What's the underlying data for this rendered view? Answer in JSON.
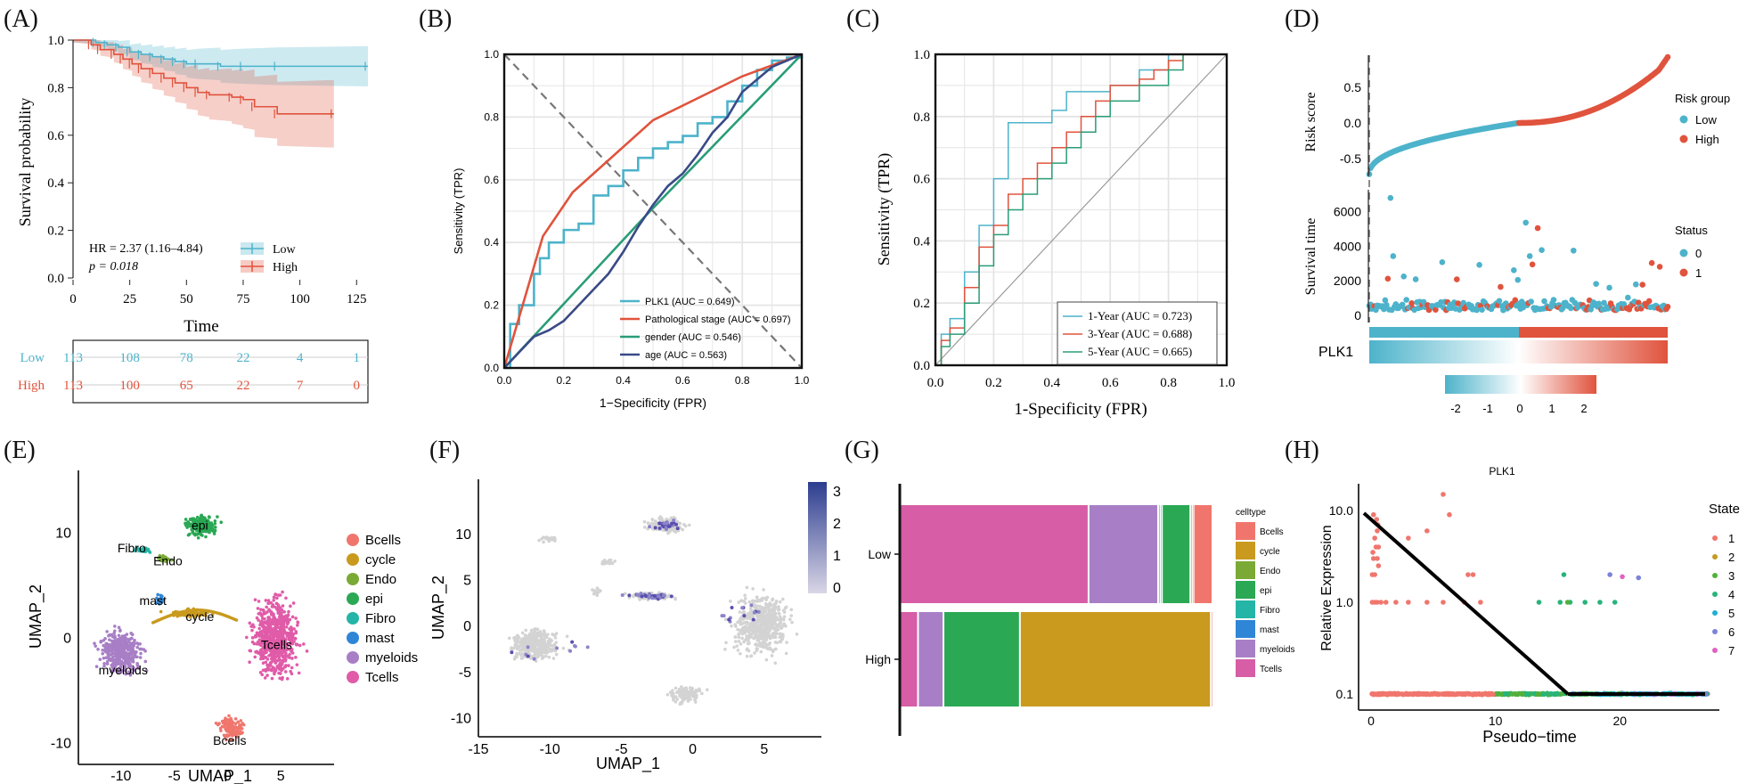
{
  "colors": {
    "low": "#4db3cb",
    "high": "#e0533d",
    "green": "#2a9d78",
    "navy": "#3a4a86",
    "grey": "#cccccc"
  },
  "panel_letters": [
    "(A)",
    "(B)",
    "(C)",
    "(D)",
    "(E)",
    "(F)",
    "(G)",
    "(H)"
  ],
  "chart_data": [
    {
      "id": "A",
      "type": "line",
      "title": "",
      "xlabel": "Time",
      "ylabel": "Survival probability",
      "xlim": [
        0,
        130
      ],
      "ylim": [
        0,
        1
      ],
      "xticks": [
        "0",
        "25",
        "50",
        "75",
        "100",
        "125"
      ],
      "yticks": [
        "0.0",
        "0.2",
        "0.4",
        "0.6",
        "0.8",
        "1.0"
      ],
      "series": [
        {
          "name": "Low",
          "x": [
            0,
            10,
            15,
            20,
            25,
            30,
            35,
            40,
            45,
            50,
            55,
            65,
            75,
            90,
            130
          ],
          "y": [
            1.0,
            0.99,
            0.98,
            0.97,
            0.95,
            0.94,
            0.93,
            0.92,
            0.91,
            0.9,
            0.9,
            0.89,
            0.89,
            0.89,
            0.89
          ]
        },
        {
          "name": "High",
          "x": [
            0,
            8,
            12,
            18,
            22,
            26,
            30,
            35,
            40,
            45,
            50,
            55,
            60,
            70,
            75,
            80,
            90,
            115
          ],
          "y": [
            1.0,
            0.98,
            0.96,
            0.94,
            0.92,
            0.9,
            0.88,
            0.86,
            0.84,
            0.82,
            0.8,
            0.78,
            0.77,
            0.76,
            0.75,
            0.72,
            0.69,
            0.69
          ]
        }
      ],
      "annotation_hr": "HR = 2.37 (1.16–4.84)",
      "annotation_p": "p = 0.018",
      "legend": [
        "Low",
        "High"
      ],
      "risk_table": {
        "rows": [
          {
            "name": "Low",
            "values": [
              "113",
              "108",
              "78",
              "22",
              "4",
              "1"
            ]
          },
          {
            "name": "High",
            "values": [
              "113",
              "100",
              "65",
              "22",
              "7",
              "0"
            ]
          }
        ]
      }
    },
    {
      "id": "B",
      "type": "line",
      "xlabel": "1−Specificity (FPR)",
      "ylabel": "Sensitivity (TPR)",
      "xlim": [
        0,
        1
      ],
      "ylim": [
        0,
        1
      ],
      "xticks": [
        "0.0",
        "0.2",
        "0.4",
        "0.6",
        "0.8",
        "1.0"
      ],
      "yticks": [
        "0.0",
        "0.2",
        "0.4",
        "0.6",
        "0.8",
        "1.0"
      ],
      "series": [
        {
          "name": "PLK1 (AUC = 0.649)",
          "x": [
            0,
            0.02,
            0.05,
            0.1,
            0.12,
            0.15,
            0.2,
            0.25,
            0.3,
            0.35,
            0.4,
            0.45,
            0.5,
            0.55,
            0.6,
            0.65,
            0.7,
            0.75,
            0.8,
            0.85,
            0.9,
            0.95,
            1
          ],
          "y": [
            0,
            0.14,
            0.2,
            0.3,
            0.35,
            0.4,
            0.44,
            0.46,
            0.55,
            0.58,
            0.63,
            0.67,
            0.7,
            0.72,
            0.74,
            0.78,
            0.8,
            0.85,
            0.9,
            0.95,
            0.98,
            0.99,
            1
          ]
        },
        {
          "name": "Pathological stage (AUC = 0.697)",
          "x": [
            0,
            0.13,
            0.23,
            0.5,
            0.8,
            1
          ],
          "y": [
            0,
            0.42,
            0.56,
            0.79,
            0.93,
            1
          ]
        },
        {
          "name": "gender (AUC = 0.546)",
          "x": [
            0,
            0.47,
            1
          ],
          "y": [
            0,
            0.48,
            1
          ]
        },
        {
          "name": "age (AUC = 0.563)",
          "x": [
            0,
            0.05,
            0.1,
            0.15,
            0.2,
            0.25,
            0.3,
            0.35,
            0.4,
            0.45,
            0.5,
            0.55,
            0.6,
            0.65,
            0.7,
            0.75,
            0.8,
            0.85,
            0.9,
            0.95,
            1
          ],
          "y": [
            0,
            0.05,
            0.1,
            0.12,
            0.15,
            0.2,
            0.25,
            0.3,
            0.37,
            0.45,
            0.52,
            0.58,
            0.62,
            0.68,
            0.75,
            0.8,
            0.88,
            0.92,
            0.96,
            0.98,
            1
          ]
        }
      ],
      "legend": [
        "PLK1 (AUC = 0.649)",
        "Pathological stage (AUC = 0.697)",
        "gender (AUC = 0.546)",
        "age (AUC = 0.563)"
      ]
    },
    {
      "id": "C",
      "type": "line",
      "xlabel": "1-Specificity (FPR)",
      "ylabel": "Sensitivity (TPR)",
      "xlim": [
        0,
        1
      ],
      "ylim": [
        0,
        1
      ],
      "xticks": [
        "0.0",
        "0.2",
        "0.4",
        "0.6",
        "0.8",
        "1.0"
      ],
      "yticks": [
        "0.0",
        "0.2",
        "0.4",
        "0.6",
        "0.8",
        "1.0"
      ],
      "series": [
        {
          "name": "1-Year (AUC = 0.723)",
          "x": [
            0,
            0.02,
            0.05,
            0.1,
            0.15,
            0.2,
            0.25,
            0.3,
            0.35,
            0.4,
            0.45,
            0.5,
            0.6,
            0.7,
            0.8,
            0.9,
            1
          ],
          "y": [
            0,
            0.1,
            0.15,
            0.3,
            0.45,
            0.6,
            0.78,
            0.78,
            0.78,
            0.82,
            0.88,
            0.88,
            0.9,
            0.95,
            1,
            1,
            1
          ]
        },
        {
          "name": "3-Year (AUC = 0.688)",
          "x": [
            0,
            0.02,
            0.05,
            0.1,
            0.15,
            0.2,
            0.25,
            0.3,
            0.35,
            0.4,
            0.45,
            0.5,
            0.55,
            0.6,
            0.7,
            0.75,
            0.8,
            0.85,
            1
          ],
          "y": [
            0,
            0.08,
            0.12,
            0.25,
            0.38,
            0.45,
            0.55,
            0.6,
            0.65,
            0.7,
            0.75,
            0.8,
            0.85,
            0.9,
            0.92,
            0.95,
            0.98,
            1,
            1
          ]
        },
        {
          "name": "5-Year (AUC = 0.665)",
          "x": [
            0,
            0.02,
            0.05,
            0.1,
            0.15,
            0.2,
            0.25,
            0.3,
            0.35,
            0.4,
            0.45,
            0.5,
            0.55,
            0.6,
            0.7,
            0.8,
            0.85,
            1
          ],
          "y": [
            0,
            0.06,
            0.1,
            0.2,
            0.32,
            0.42,
            0.5,
            0.55,
            0.6,
            0.65,
            0.7,
            0.75,
            0.8,
            0.85,
            0.9,
            0.95,
            1,
            1
          ]
        }
      ],
      "legend": [
        "1-Year (AUC = 0.723)",
        "3-Year (AUC = 0.688)",
        "5-Year (AUC = 0.665)"
      ]
    },
    {
      "id": "D",
      "type": "scatter",
      "top": {
        "ylabel": "Risk score",
        "yticks": [
          "0.5",
          "0.0",
          "-0.5"
        ],
        "ylim": [
          -0.75,
          0.95
        ],
        "legend_title": "Risk group",
        "legend": [
          "Low",
          "High"
        ]
      },
      "middle": {
        "ylabel": "Survival time",
        "yticks": [
          "6000",
          "4000",
          "2000",
          "0"
        ],
        "ylim": [
          0,
          7200
        ],
        "legend_title": "Status",
        "legend": [
          "0",
          "1"
        ]
      },
      "heatmap_label": "PLK1",
      "colorbar_ticks": [
        "-2",
        "-1",
        "0",
        "1",
        "2"
      ]
    },
    {
      "id": "E",
      "type": "scatter",
      "xlabel": "UMAP_1",
      "ylabel": "UMAP_2",
      "xlim": [
        -14,
        10
      ],
      "ylim": [
        -12,
        16
      ],
      "xticks": [
        "-10",
        "-5",
        "0",
        "5"
      ],
      "yticks": [
        "10",
        "0",
        "-10"
      ],
      "legend": [
        "Bcells",
        "cycle",
        "Endo",
        "epi",
        "Fibro",
        "mast",
        "myeloids",
        "Tcells"
      ],
      "legend_colors": [
        "#f0766d",
        "#c99a1e",
        "#7aaa35",
        "#2aa854",
        "#25b5a6",
        "#2f86d6",
        "#a87fc6",
        "#e05ba8"
      ],
      "cluster_labels": [
        "epi",
        "Fibro",
        "Endo",
        "mast",
        "cycle",
        "Tcells",
        "myeloids",
        "Bcells"
      ]
    },
    {
      "id": "F",
      "type": "scatter",
      "xlabel": "UMAP_1",
      "ylabel": "UMAP_2",
      "xlim": [
        -15,
        9
      ],
      "ylim": [
        -12,
        16
      ],
      "xticks": [
        "-15",
        "-10",
        "-5",
        "0",
        "5"
      ],
      "yticks": [
        "10",
        "5",
        "0",
        "-5",
        "-10"
      ],
      "colorbar_ticks": [
        "3",
        "2",
        "1",
        "0"
      ]
    },
    {
      "id": "G",
      "type": "bar",
      "categories": [
        "Low",
        "High"
      ],
      "series": [
        {
          "name": "Bcells",
          "values": [
            0.06,
            0.005
          ]
        },
        {
          "name": "cycle",
          "values": [
            0.005,
            0.6
          ]
        },
        {
          "name": "Endo",
          "values": [
            0.005,
            0.0
          ]
        },
        {
          "name": "epi",
          "values": [
            0.09,
            0.24
          ]
        },
        {
          "name": "Fibro",
          "values": [
            0.006,
            0.0
          ]
        },
        {
          "name": "mast",
          "values": [
            0.006,
            0.0
          ]
        },
        {
          "name": "myeloids",
          "values": [
            0.22,
            0.08
          ]
        },
        {
          "name": "Tcells",
          "values": [
            0.6,
            0.06
          ]
        }
      ],
      "legend_title": "celltype",
      "legend": [
        "Bcells",
        "cycle",
        "Endo",
        "epi",
        "Fibro",
        "mast",
        "myeloids",
        "Tcells"
      ],
      "legend_colors": [
        "#f0766d",
        "#c99a1e",
        "#7aaa35",
        "#2aa854",
        "#25b5a6",
        "#2f86d6",
        "#a87fc6",
        "#d65da6"
      ]
    },
    {
      "id": "H",
      "type": "scatter",
      "title": "PLK1",
      "xlabel": "Pseudo−time",
      "ylabel": "Relative Expression",
      "xlim": [
        -1,
        28
      ],
      "ylim": [
        0.1,
        16
      ],
      "xticks": [
        "0",
        "10",
        "20"
      ],
      "yticks": [
        "10.0",
        "1.0",
        "0.1"
      ],
      "legend_title": "State",
      "legend": [
        "1",
        "2",
        "3",
        "4",
        "5",
        "6",
        "7"
      ],
      "legend_colors": [
        "#f0766d",
        "#c49a22",
        "#53b03b",
        "#27b47a",
        "#1eb0d2",
        "#7b83d8",
        "#e063c1"
      ]
    }
  ]
}
